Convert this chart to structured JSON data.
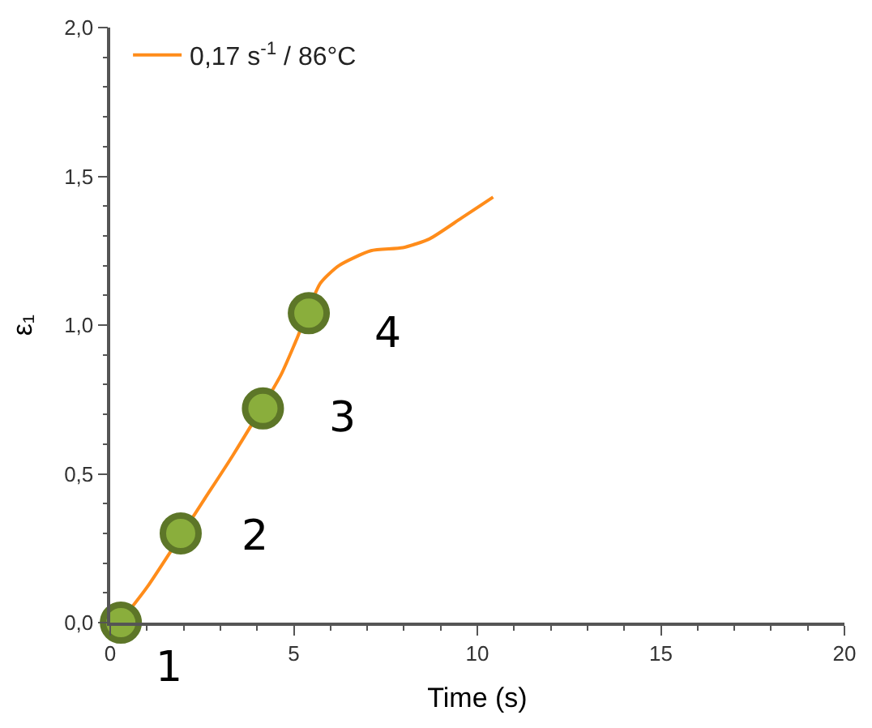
{
  "chart_data": {
    "type": "line",
    "xlabel": "Time (s)",
    "ylabel": "ε₁",
    "series": [
      {
        "name": "0,17 s$^{-1}$ / 86°C",
        "color": "#ff8c1a",
        "marker": "none",
        "x": [
          0.26,
          1.01,
          2.54,
          3.33,
          4.64,
          5.07,
          5.72,
          6.23,
          7.1,
          7.97,
          8.7,
          9.57,
          10.43
        ],
        "values": [
          0.0,
          0.12,
          0.41,
          0.56,
          0.83,
          0.95,
          1.14,
          1.2,
          1.25,
          1.26,
          1.29,
          1.36,
          1.43
        ]
      },
      {
        "type": "scatter",
        "color": "#8aae3c",
        "marker": "circle",
        "x": [
          0.29,
          1.92,
          4.16,
          5.41
        ],
        "values": [
          0.0,
          0.3,
          0.72,
          1.04
        ]
      }
    ],
    "annotations": [
      {
        "text": "1",
        "x": 0.29,
        "y": 0.0
      },
      {
        "text": "2",
        "x": 1.92,
        "y": 0.3
      },
      {
        "text": "3",
        "x": 4.16,
        "y": 0.72
      },
      {
        "text": "4",
        "x": 5.41,
        "y": 1.04
      }
    ],
    "xlim": [
      0,
      20
    ],
    "xticks": [
      0,
      5,
      10,
      15,
      20
    ],
    "ylim": [
      0,
      2.0
    ],
    "yticks": [
      {
        "value": 0,
        "label": "0,0"
      },
      {
        "value": 0.5,
        "label": "0,5"
      },
      {
        "value": 1.0,
        "label": "1,0"
      },
      {
        "value": 1.5,
        "label": "1,5"
      },
      {
        "value": 2.0,
        "label": "2,0"
      }
    ],
    "grid": false,
    "legend": "top left"
  }
}
